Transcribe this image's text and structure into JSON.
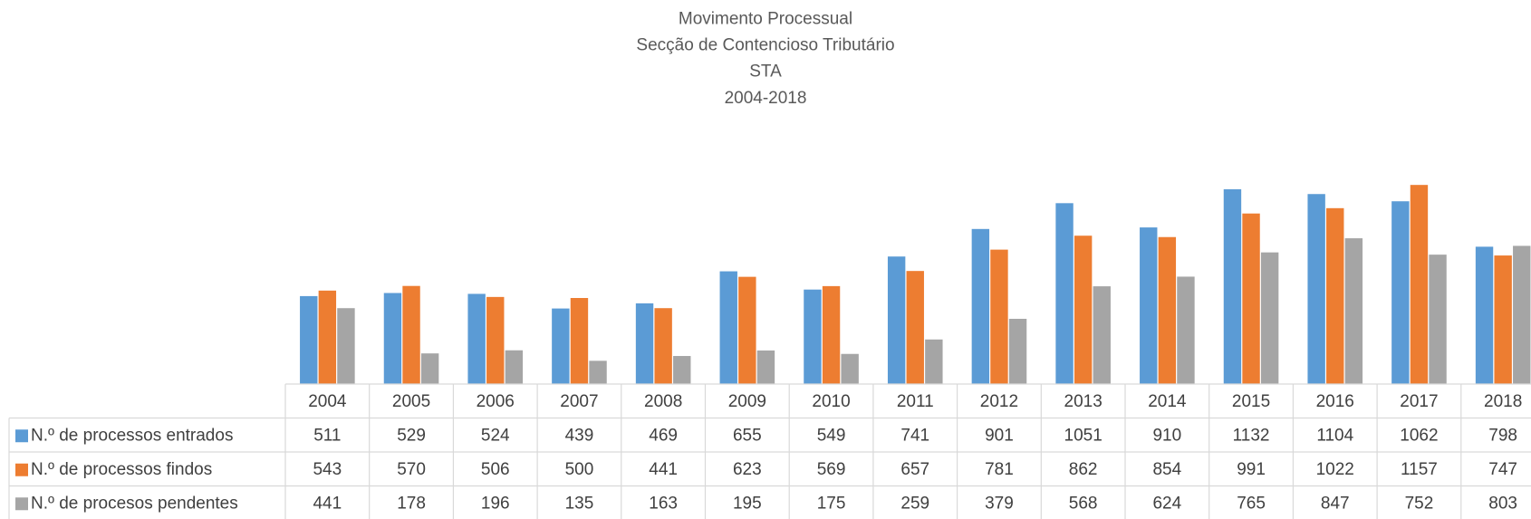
{
  "chart_data": {
    "type": "bar",
    "title": [
      "Movimento Processual",
      "Secção de Contencioso Tributário",
      "STA",
      "2004-2018"
    ],
    "categories": [
      "2004",
      "2005",
      "2006",
      "2007",
      "2008",
      "2009",
      "2010",
      "2011",
      "2012",
      "2013",
      "2014",
      "2015",
      "2016",
      "2017",
      "2018"
    ],
    "series": [
      {
        "name": "N.º de processos entrados",
        "color": "#5b9bd5",
        "values": [
          511,
          529,
          524,
          439,
          469,
          655,
          549,
          741,
          901,
          1051,
          910,
          1132,
          1104,
          1062,
          798
        ]
      },
      {
        "name": "N.º de processos findos",
        "color": "#ed7d31",
        "values": [
          543,
          570,
          506,
          500,
          441,
          623,
          569,
          657,
          781,
          862,
          854,
          991,
          1022,
          1157,
          747
        ]
      },
      {
        "name": "N.º de procesos pendentes",
        "color": "#a5a5a5",
        "values": [
          441,
          178,
          196,
          135,
          163,
          195,
          175,
          259,
          379,
          568,
          624,
          765,
          847,
          752,
          803
        ]
      }
    ],
    "ylim": [
      0,
      1400
    ]
  }
}
